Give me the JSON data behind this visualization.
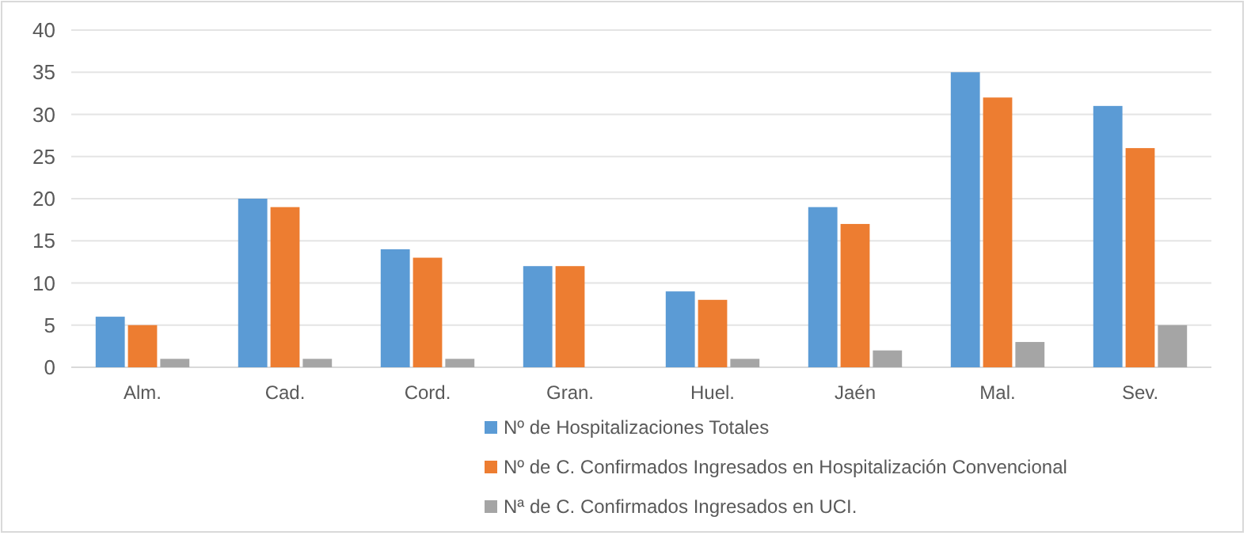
{
  "chart_data": {
    "type": "bar",
    "categories": [
      "Alm.",
      "Cad.",
      "Cord.",
      "Gran.",
      "Huel.",
      "Jaén",
      "Mal.",
      "Sev."
    ],
    "series": [
      {
        "name": "Nº de Hospitalizaciones Totales",
        "color": "#5b9bd5",
        "values": [
          6,
          20,
          14,
          12,
          9,
          19,
          35,
          31
        ]
      },
      {
        "name": "Nº de C. Confirmados Ingresados en Hospitalización Convencional",
        "color": "#ed7d31",
        "values": [
          5,
          19,
          13,
          12,
          8,
          17,
          32,
          26
        ]
      },
      {
        "name": "Nª de C. Confirmados Ingresados en UCI.",
        "color": "#a5a5a5",
        "values": [
          1,
          1,
          1,
          0,
          1,
          2,
          3,
          5
        ]
      }
    ],
    "ylim": [
      0,
      40
    ],
    "yticks": [
      0,
      5,
      10,
      15,
      20,
      25,
      30,
      35,
      40
    ],
    "grid": "y",
    "legend": "bottom"
  }
}
